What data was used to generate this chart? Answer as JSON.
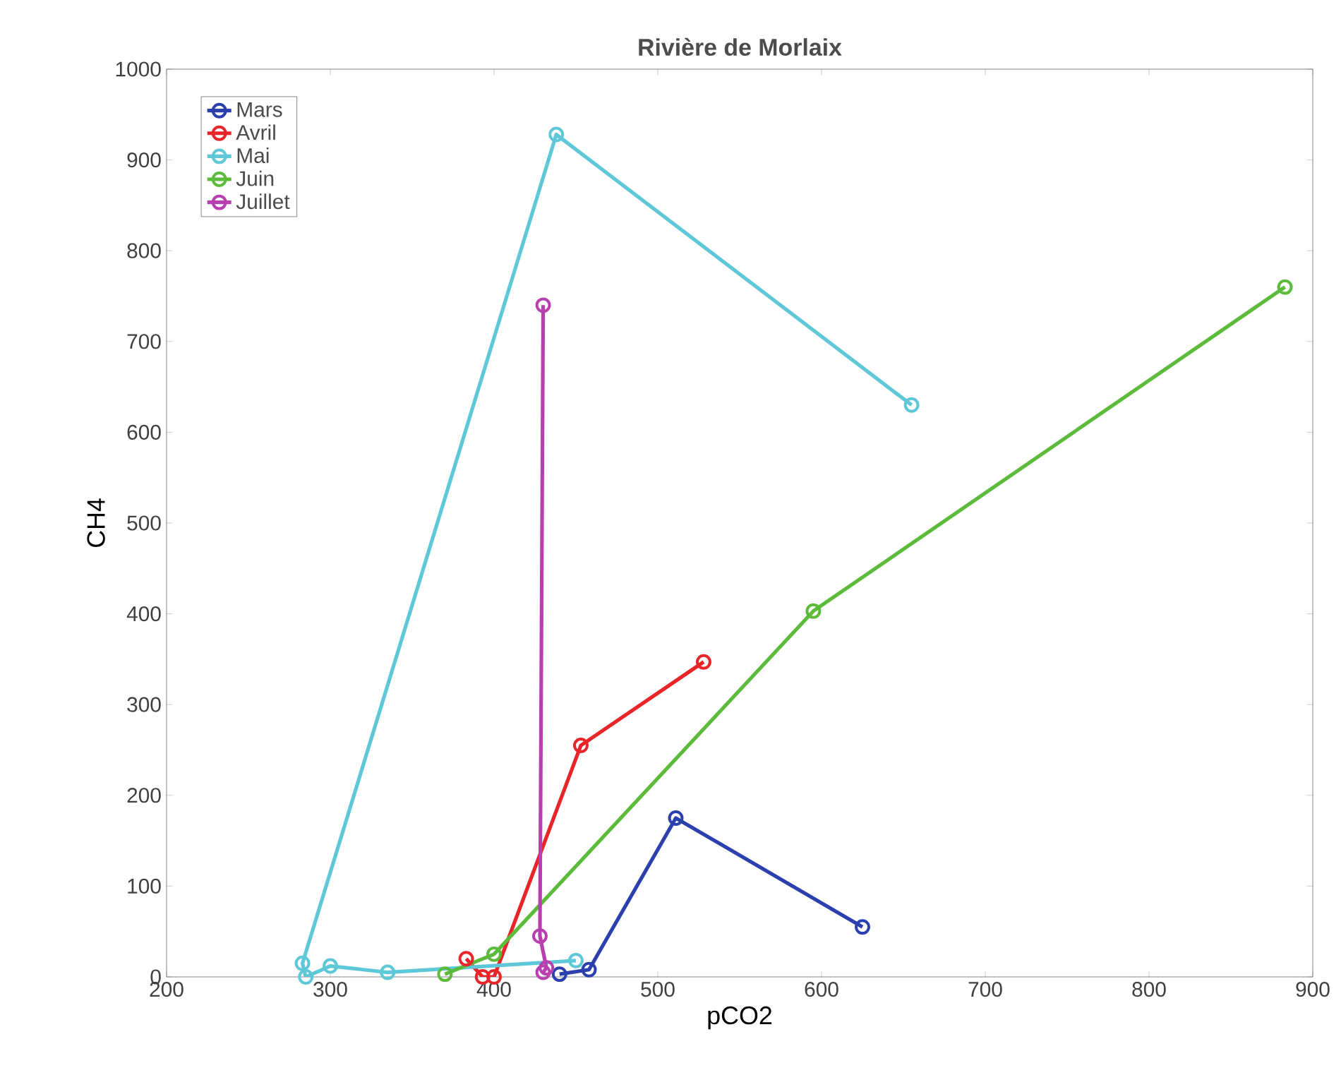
{
  "chart_data": {
    "type": "line",
    "title": "Rivière de Morlaix",
    "xlabel": "pCO2",
    "ylabel": "CH4",
    "xlim": [
      200,
      900
    ],
    "xticks": [
      200,
      300,
      400,
      500,
      600,
      700,
      800,
      900
    ],
    "ylim": [
      0,
      1000
    ],
    "yticks": [
      0,
      100,
      200,
      300,
      400,
      500,
      600,
      700,
      800,
      900,
      1000
    ],
    "marker": "circle",
    "legend": "top left",
    "series": [
      {
        "name": "Mars",
        "color": "#2b3fae",
        "x": [
          440,
          458,
          511,
          625
        ],
        "values": [
          3,
          8,
          175,
          55
        ]
      },
      {
        "name": "Avril",
        "color": "#e8262a",
        "x": [
          383,
          393,
          400,
          453,
          528
        ],
        "values": [
          20,
          0,
          0,
          255,
          347
        ]
      },
      {
        "name": "Mai",
        "color": "#5ec8d8",
        "x": [
          655,
          438,
          283,
          285,
          300,
          335,
          450
        ],
        "values": [
          630,
          928,
          15,
          0,
          12,
          5,
          18
        ]
      },
      {
        "name": "Juin",
        "color": "#5dbb3b",
        "x": [
          370,
          400,
          595,
          883
        ],
        "values": [
          3,
          25,
          403,
          760
        ]
      },
      {
        "name": "Juillet",
        "color": "#b93fb0",
        "x": [
          430,
          432,
          428,
          430
        ],
        "values": [
          5,
          10,
          45,
          740
        ]
      }
    ]
  }
}
